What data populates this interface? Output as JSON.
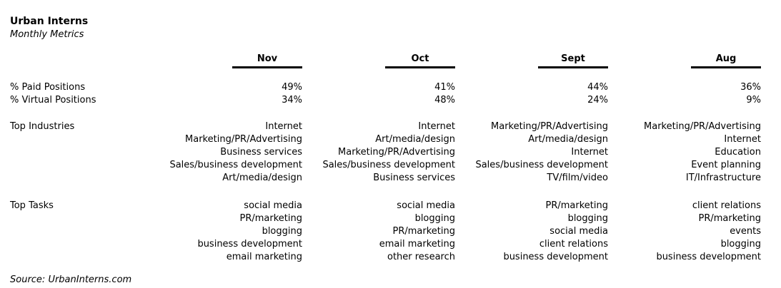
{
  "title": "Urban Interns",
  "subtitle": "Monthly Metrics",
  "source": "Source: UrbanInterns.com",
  "chart_data": {
    "type": "table",
    "title": "Urban Interns",
    "subtitle": "Monthly Metrics",
    "source": "Source: UrbanInterns.com",
    "columns": [
      "Nov",
      "Oct",
      "Sept",
      "Aug"
    ],
    "row_labels": {
      "paid": "% Paid Positions",
      "virtual": "% Virtual Positions",
      "industries": "Top Industries",
      "tasks": "Top Tasks"
    },
    "paid_positions": [
      "49%",
      "41%",
      "44%",
      "36%"
    ],
    "virtual_positions": [
      "34%",
      "48%",
      "24%",
      "9%"
    ],
    "top_industries": [
      [
        "Internet",
        "Marketing/PR/Advertising",
        "Business services",
        "Sales/business development",
        "Art/media/design"
      ],
      [
        "Internet",
        "Art/media/design",
        "Marketing/PR/Advertising",
        "Sales/business development",
        "Business services"
      ],
      [
        "Marketing/PR/Advertising",
        "Art/media/design",
        "Internet",
        "Sales/business development",
        "TV/film/video"
      ],
      [
        "Marketing/PR/Advertising",
        "Internet",
        "Education",
        "Event planning",
        "IT/Infrastructure"
      ]
    ],
    "top_tasks": [
      [
        "social media",
        "PR/marketing",
        "blogging",
        "business development",
        "email marketing"
      ],
      [
        "social media",
        "blogging",
        "PR/marketing",
        "email marketing",
        "other research"
      ],
      [
        "PR/marketing",
        "blogging",
        "social media",
        "client relations",
        "business development"
      ],
      [
        "client relations",
        "PR/marketing",
        "events",
        "blogging",
        "business development"
      ]
    ]
  }
}
